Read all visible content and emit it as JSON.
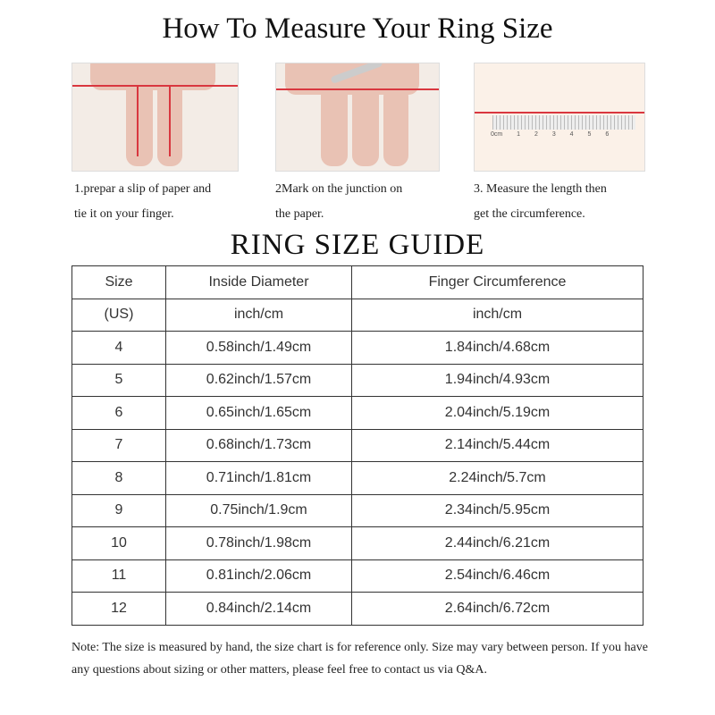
{
  "title": "How To Measure Your Ring Size",
  "steps": [
    {
      "line1": "1.prepar a slip of paper and",
      "line2": "tie it on your finger."
    },
    {
      "line1": "2Mark on the  junction on",
      "line2": "the paper."
    },
    {
      "line1": "3. Measure the length then",
      "line2": "get the circumference."
    }
  ],
  "ruler_labels": "0cm 1 2 3 4 5 6",
  "guide_title": "RING SIZE  GUIDE",
  "table": {
    "header": [
      "Size",
      "Inside Diameter",
      "Finger Circumference"
    ],
    "units": [
      "(US)",
      "inch/cm",
      "inch/cm"
    ],
    "rows": [
      [
        "4",
        "0.58inch/1.49cm",
        "1.84inch/4.68cm"
      ],
      [
        "5",
        "0.62inch/1.57cm",
        "1.94inch/4.93cm"
      ],
      [
        "6",
        "0.65inch/1.65cm",
        "2.04inch/5.19cm"
      ],
      [
        "7",
        "0.68inch/1.73cm",
        "2.14inch/5.44cm"
      ],
      [
        "8",
        "0.71inch/1.81cm",
        "2.24inch/5.7cm"
      ],
      [
        "9",
        "0.75inch/1.9cm",
        "2.34inch/5.95cm"
      ],
      [
        "10",
        "0.78inch/1.98cm",
        "2.44inch/6.21cm"
      ],
      [
        "11",
        "0.81inch/2.06cm",
        "2.54inch/6.46cm"
      ],
      [
        "12",
        "0.84inch/2.14cm",
        "2.64inch/6.72cm"
      ]
    ]
  },
  "note": "Note: The size is measured by hand, the size chart is for reference only. Size may vary between person. If you have any questions about sizing or other matters, please feel free to contact us via Q&A.",
  "colors": {
    "string": "#d9373f",
    "skin": "#e9c2b4"
  }
}
